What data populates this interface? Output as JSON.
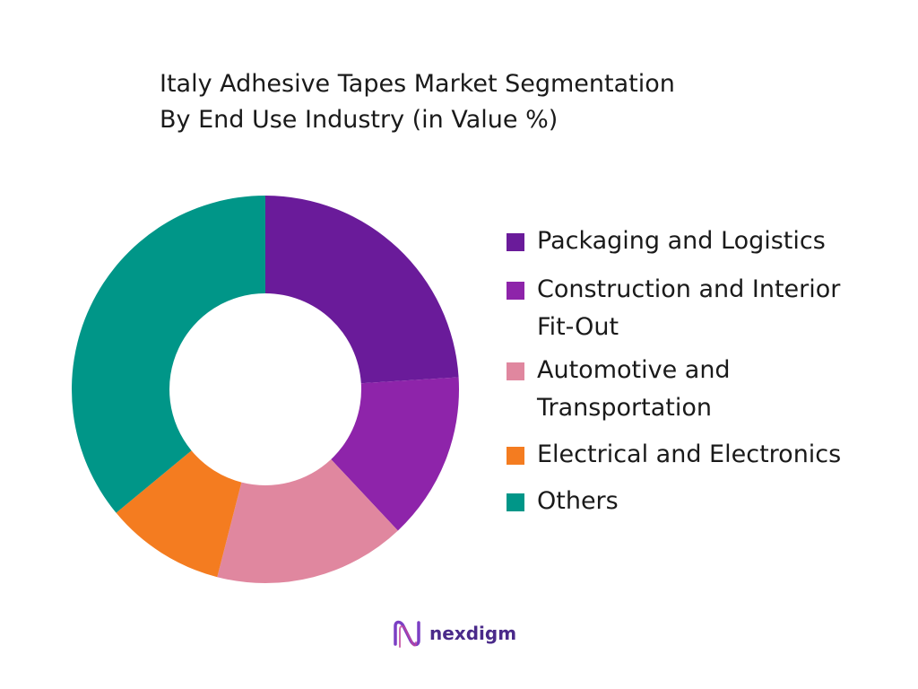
{
  "chart_data": {
    "type": "pie",
    "variant": "donut",
    "title_lines": [
      "Italy Adhesive Tapes Market Segmentation",
      "By End Use Industry (in Value %)"
    ],
    "categories": [
      "Packaging and Logistics",
      "Construction and Interior\nFit-Out",
      "Automotive and\nTransportation",
      "Electrical and Electronics",
      "Others"
    ],
    "values": [
      24,
      14,
      16,
      10,
      36
    ],
    "colors": [
      "#6a1b9a",
      "#8e24aa",
      "#e0879f",
      "#f47c20",
      "#009688"
    ],
    "legend_position": "right"
  },
  "brand": {
    "logo_text": "nexdigm",
    "logo_color": "#4a2a8a"
  }
}
